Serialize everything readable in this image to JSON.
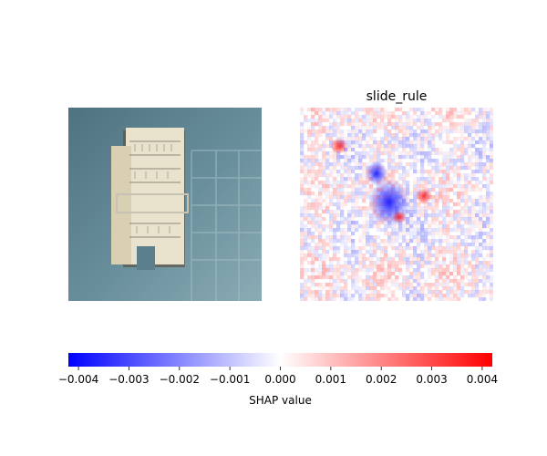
{
  "chart_data": [
    {
      "type": "image",
      "content": "photo of a slide rule on a blue-grey background",
      "title": ""
    },
    {
      "type": "heatmap",
      "title": "slide_rule",
      "value_range": [
        -0.004,
        0.004
      ],
      "colormap": [
        "#0000ff",
        "#ffffff",
        "#ff0000"
      ]
    },
    {
      "type": "colorbar",
      "orientation": "horizontal",
      "range": [
        -0.0042,
        0.0042
      ],
      "ticks": [
        -0.004,
        -0.003,
        -0.002,
        -0.001,
        0.0,
        0.001,
        0.002,
        0.003,
        0.004
      ],
      "tick_labels": [
        "−0.004",
        "−0.003",
        "−0.002",
        "−0.001",
        "0.000",
        "0.001",
        "0.002",
        "0.003",
        "0.004"
      ],
      "xlabel": "SHAP value"
    }
  ],
  "colors": {
    "negative": "#0000ff",
    "neutral": "#ffffff",
    "positive": "#ff0000",
    "photo_background": "#5c7f8d",
    "slide_rule_body": "#e8e0c8"
  }
}
